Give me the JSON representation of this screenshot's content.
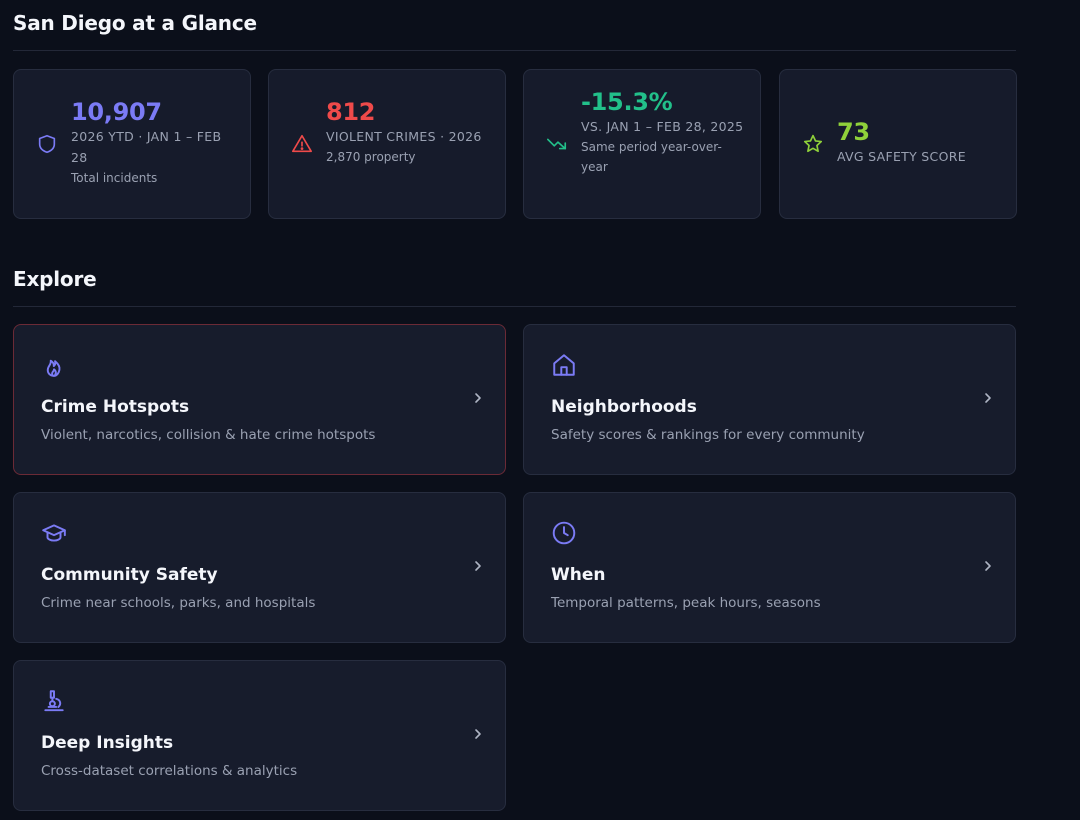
{
  "glance": {
    "title": "San Diego at a Glance"
  },
  "stats": [
    {
      "icon": "shield-icon",
      "value": "10,907",
      "label": "2026 YTD · JAN 1 – FEB 28",
      "sub": "Total incidents",
      "color": "#7b7bf5"
    },
    {
      "icon": "warning-icon",
      "value": "812",
      "label": "VIOLENT CRIMES · 2026",
      "sub": "2,870 property",
      "color": "#ef4a4a"
    },
    {
      "icon": "trending-down-icon",
      "value": "-15.3%",
      "label": "VS. JAN 1 – FEB 28, 2025",
      "sub": "Same period year-over-year",
      "color": "#22c08a"
    },
    {
      "icon": "star-icon",
      "value": "73",
      "label": "AVG SAFETY SCORE",
      "sub": "",
      "color": "#8fd13a"
    }
  ],
  "explore": {
    "title": "Explore",
    "cards": [
      {
        "icon": "flame-icon",
        "title": "Crime Hotspots",
        "desc": "Violent, narcotics, collision & hate crime hotspots"
      },
      {
        "icon": "home-icon",
        "title": "Neighborhoods",
        "desc": "Safety scores & rankings for every community"
      },
      {
        "icon": "graduation-cap-icon",
        "title": "Community Safety",
        "desc": "Crime near schools, parks, and hospitals"
      },
      {
        "icon": "clock-icon",
        "title": "When",
        "desc": "Temporal patterns, peak hours, seasons"
      },
      {
        "icon": "microscope-icon",
        "title": "Deep Insights",
        "desc": "Cross-dataset correlations & analytics"
      }
    ]
  },
  "colors": {
    "accent": "#7b7bf5",
    "background": "#0b0f1a",
    "card": "#171c2c"
  }
}
